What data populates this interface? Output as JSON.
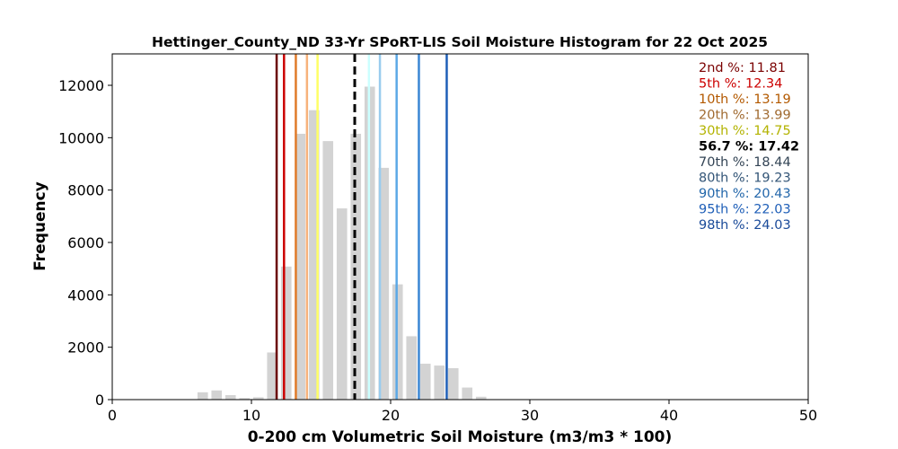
{
  "chart_data": {
    "type": "bar",
    "title": "Hettinger_County_ND 33-Yr SPoRT-LIS Soil Moisture Histogram for 22 Oct 2025",
    "xlabel": "0-200 cm Volumetric Soil Moisture (m3/m3 * 100)",
    "ylabel": "Frequency",
    "xlim": [
      0,
      50
    ],
    "ylim": [
      0,
      13200
    ],
    "xticks": [
      "0",
      "10",
      "20",
      "30",
      "40",
      "50"
    ],
    "yticks": [
      "0",
      "2000",
      "4000",
      "6000",
      "8000",
      "10000",
      "12000"
    ],
    "grid": false,
    "bar_color": "#d3d3d3",
    "bin_width": 1.0,
    "bins": [
      {
        "x": 6.5,
        "value": 280
      },
      {
        "x": 7.5,
        "value": 350
      },
      {
        "x": 8.5,
        "value": 170
      },
      {
        "x": 9.5,
        "value": 60
      },
      {
        "x": 10.5,
        "value": 90
      },
      {
        "x": 11.5,
        "value": 1800
      },
      {
        "x": 12.5,
        "value": 5080
      },
      {
        "x": 13.5,
        "value": 10150
      },
      {
        "x": 14.5,
        "value": 11050
      },
      {
        "x": 15.5,
        "value": 9870
      },
      {
        "x": 16.5,
        "value": 7300
      },
      {
        "x": 17.5,
        "value": 10150
      },
      {
        "x": 18.5,
        "value": 11950
      },
      {
        "x": 19.5,
        "value": 8850
      },
      {
        "x": 20.5,
        "value": 4400
      },
      {
        "x": 21.5,
        "value": 2420
      },
      {
        "x": 22.5,
        "value": 1370
      },
      {
        "x": 23.5,
        "value": 1300
      },
      {
        "x": 24.5,
        "value": 1200
      },
      {
        "x": 25.5,
        "value": 460
      },
      {
        "x": 26.5,
        "value": 110
      }
    ],
    "percentile_lines": [
      {
        "label": "2nd %",
        "value": "11.81",
        "x": 11.81,
        "color": "#6b0000",
        "dashed": false
      },
      {
        "label": "5th %",
        "value": "12.34",
        "x": 12.34,
        "color": "#cc0000",
        "dashed": false
      },
      {
        "label": "10th %",
        "value": "13.19",
        "x": 13.19,
        "color": "#e07b2a",
        "dashed": false
      },
      {
        "label": "20th %",
        "value": "13.99",
        "x": 13.99,
        "color": "#f7b27b",
        "dashed": false
      },
      {
        "label": "30th %",
        "value": "14.75",
        "x": 14.75,
        "color": "#ffff66",
        "dashed": false
      },
      {
        "label": "56.7 %",
        "value": "17.42",
        "x": 17.42,
        "color": "#000000",
        "dashed": true
      },
      {
        "label": "70th %",
        "value": "18.44",
        "x": 18.44,
        "color": "#ccffff",
        "dashed": false
      },
      {
        "label": "80th %",
        "value": "19.23",
        "x": 19.23,
        "color": "#99ccee",
        "dashed": false
      },
      {
        "label": "90th %",
        "value": "20.43",
        "x": 20.43,
        "color": "#5ca8e6",
        "dashed": false
      },
      {
        "label": "95th %",
        "value": "22.03",
        "x": 22.03,
        "color": "#3a86d4",
        "dashed": false
      },
      {
        "label": "98th %",
        "value": "24.03",
        "x": 24.03,
        "color": "#1f5fb8",
        "dashed": false
      }
    ],
    "legend_placement": "top-right",
    "legend_text_colors": [
      "#7a0000",
      "#cc0000",
      "#b35900",
      "#a06a30",
      "#b3b300",
      "#000000",
      "#334455",
      "#335577",
      "#2266aa",
      "#1f5fb8",
      "#1a4a99"
    ]
  }
}
